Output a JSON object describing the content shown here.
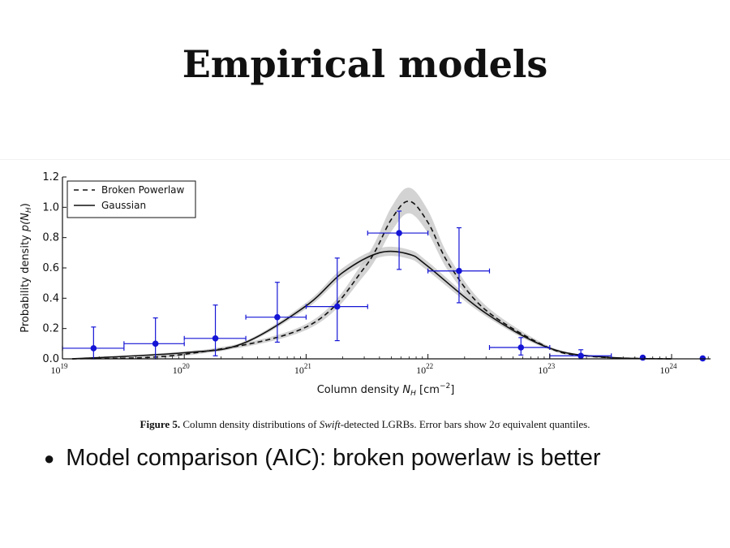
{
  "slide": {
    "title": "Empirical models",
    "bullet": "Model comparison (AIC): broken powerlaw is better"
  },
  "figure": {
    "caption_label": "Figure 5.",
    "caption_pre": " Column density distributions of ",
    "caption_italic": "Swift",
    "caption_post": "-detected LGRBs. Error bars show 2σ equivalent quantiles."
  },
  "colors": {
    "data": "#1515d6",
    "band": "#c4c4c4",
    "line": "#111111"
  },
  "chart_data": {
    "type": "line",
    "xlabel": "Column density N_H [cm^-2]",
    "ylabel": "Probability density p(N_H)",
    "xscale": "log",
    "xlim": [
      1e+19,
      1e+24
    ],
    "ylim": [
      0.0,
      1.2
    ],
    "xticks": [
      1e+19,
      1e+20,
      1e+21,
      1e+22,
      1e+23,
      1e+24
    ],
    "xtick_labels": [
      "10^19",
      "10^20",
      "10^21",
      "10^22",
      "10^23",
      "10^24"
    ],
    "yticks": [
      0.0,
      0.2,
      0.4,
      0.6,
      0.8,
      1.0,
      1.2
    ],
    "ytick_labels": [
      "0.0",
      "0.2",
      "0.4",
      "0.6",
      "0.8",
      "1.0",
      "1.2"
    ],
    "legend_position": "top-left",
    "series": [
      {
        "name": "Broken Powerlaw",
        "style": "dashed",
        "x": [
          1.2e+19,
          1e+20,
          1e+21,
          3e+21,
          5e+21,
          7e+21,
          1e+22,
          1.5e+22,
          3e+22,
          1e+23,
          2e+23,
          4e+23,
          1e+24
        ],
        "y": [
          0.0,
          0.03,
          0.21,
          0.6,
          0.92,
          1.04,
          0.9,
          0.62,
          0.32,
          0.07,
          0.02,
          0.005,
          0.0
        ],
        "band_lower": [
          0.0,
          0.02,
          0.19,
          0.55,
          0.84,
          0.96,
          0.83,
          0.57,
          0.29,
          0.06,
          0.015,
          0.004,
          0.0
        ],
        "band_upper": [
          0.0,
          0.04,
          0.23,
          0.65,
          1.0,
          1.13,
          0.98,
          0.67,
          0.35,
          0.08,
          0.025,
          0.006,
          0.0
        ]
      },
      {
        "name": "Gaussian",
        "style": "solid",
        "x": [
          1.2e+19,
          1e+20,
          3e+20,
          1e+21,
          2e+21,
          4e+21,
          7e+21,
          1e+22,
          3e+22,
          1e+23,
          3e+23,
          1e+24
        ],
        "y": [
          0.0,
          0.04,
          0.1,
          0.35,
          0.57,
          0.7,
          0.69,
          0.61,
          0.3,
          0.07,
          0.01,
          0.0
        ],
        "band_lower": [
          0.0,
          0.03,
          0.09,
          0.33,
          0.54,
          0.67,
          0.66,
          0.58,
          0.28,
          0.06,
          0.008,
          0.0
        ],
        "band_upper": [
          0.0,
          0.05,
          0.11,
          0.37,
          0.6,
          0.73,
          0.72,
          0.64,
          0.32,
          0.08,
          0.012,
          0.0
        ]
      }
    ],
    "points": [
      {
        "x": 1.8e+19,
        "y": 0.07,
        "x_err": [
          1e+19,
          3.2e+19
        ],
        "y_err": [
          0.0,
          0.21
        ]
      },
      {
        "x": 5.8e+19,
        "y": 0.1,
        "x_err": [
          3.2e+19,
          1e+20
        ],
        "y_err": [
          0.0,
          0.27
        ]
      },
      {
        "x": 1.8e+20,
        "y": 0.135,
        "x_err": [
          1e+20,
          3.2e+20
        ],
        "y_err": [
          0.02,
          0.355
        ]
      },
      {
        "x": 5.8e+20,
        "y": 0.275,
        "x_err": [
          3.2e+20,
          1e+21
        ],
        "y_err": [
          0.11,
          0.505
        ]
      },
      {
        "x": 1.8e+21,
        "y": 0.345,
        "x_err": [
          1e+21,
          3.2e+21
        ],
        "y_err": [
          0.12,
          0.665
        ]
      },
      {
        "x": 5.8e+21,
        "y": 0.83,
        "x_err": [
          3.2e+21,
          1e+22
        ],
        "y_err": [
          0.59,
          0.975
        ]
      },
      {
        "x": 1.8e+22,
        "y": 0.58,
        "x_err": [
          1e+22,
          3.2e+22
        ],
        "y_err": [
          0.37,
          0.865
        ]
      },
      {
        "x": 5.8e+22,
        "y": 0.075,
        "x_err": [
          3.2e+22,
          1e+23
        ],
        "y_err": [
          0.025,
          0.14
        ]
      },
      {
        "x": 1.8e+23,
        "y": 0.02,
        "x_err": [
          1e+23,
          3.2e+23
        ],
        "y_err": [
          0.0,
          0.06
        ]
      },
      {
        "x": 5.8e+23,
        "y": 0.008,
        "x_err": [
          5.8e+23,
          5.8e+23
        ],
        "y_err": [
          0.0,
          0.015
        ]
      },
      {
        "x": 1.8e+24,
        "y": 0.003,
        "x_err": [
          1.8e+24,
          1.8e+24
        ],
        "y_err": [
          0.0,
          0.005
        ]
      }
    ]
  }
}
